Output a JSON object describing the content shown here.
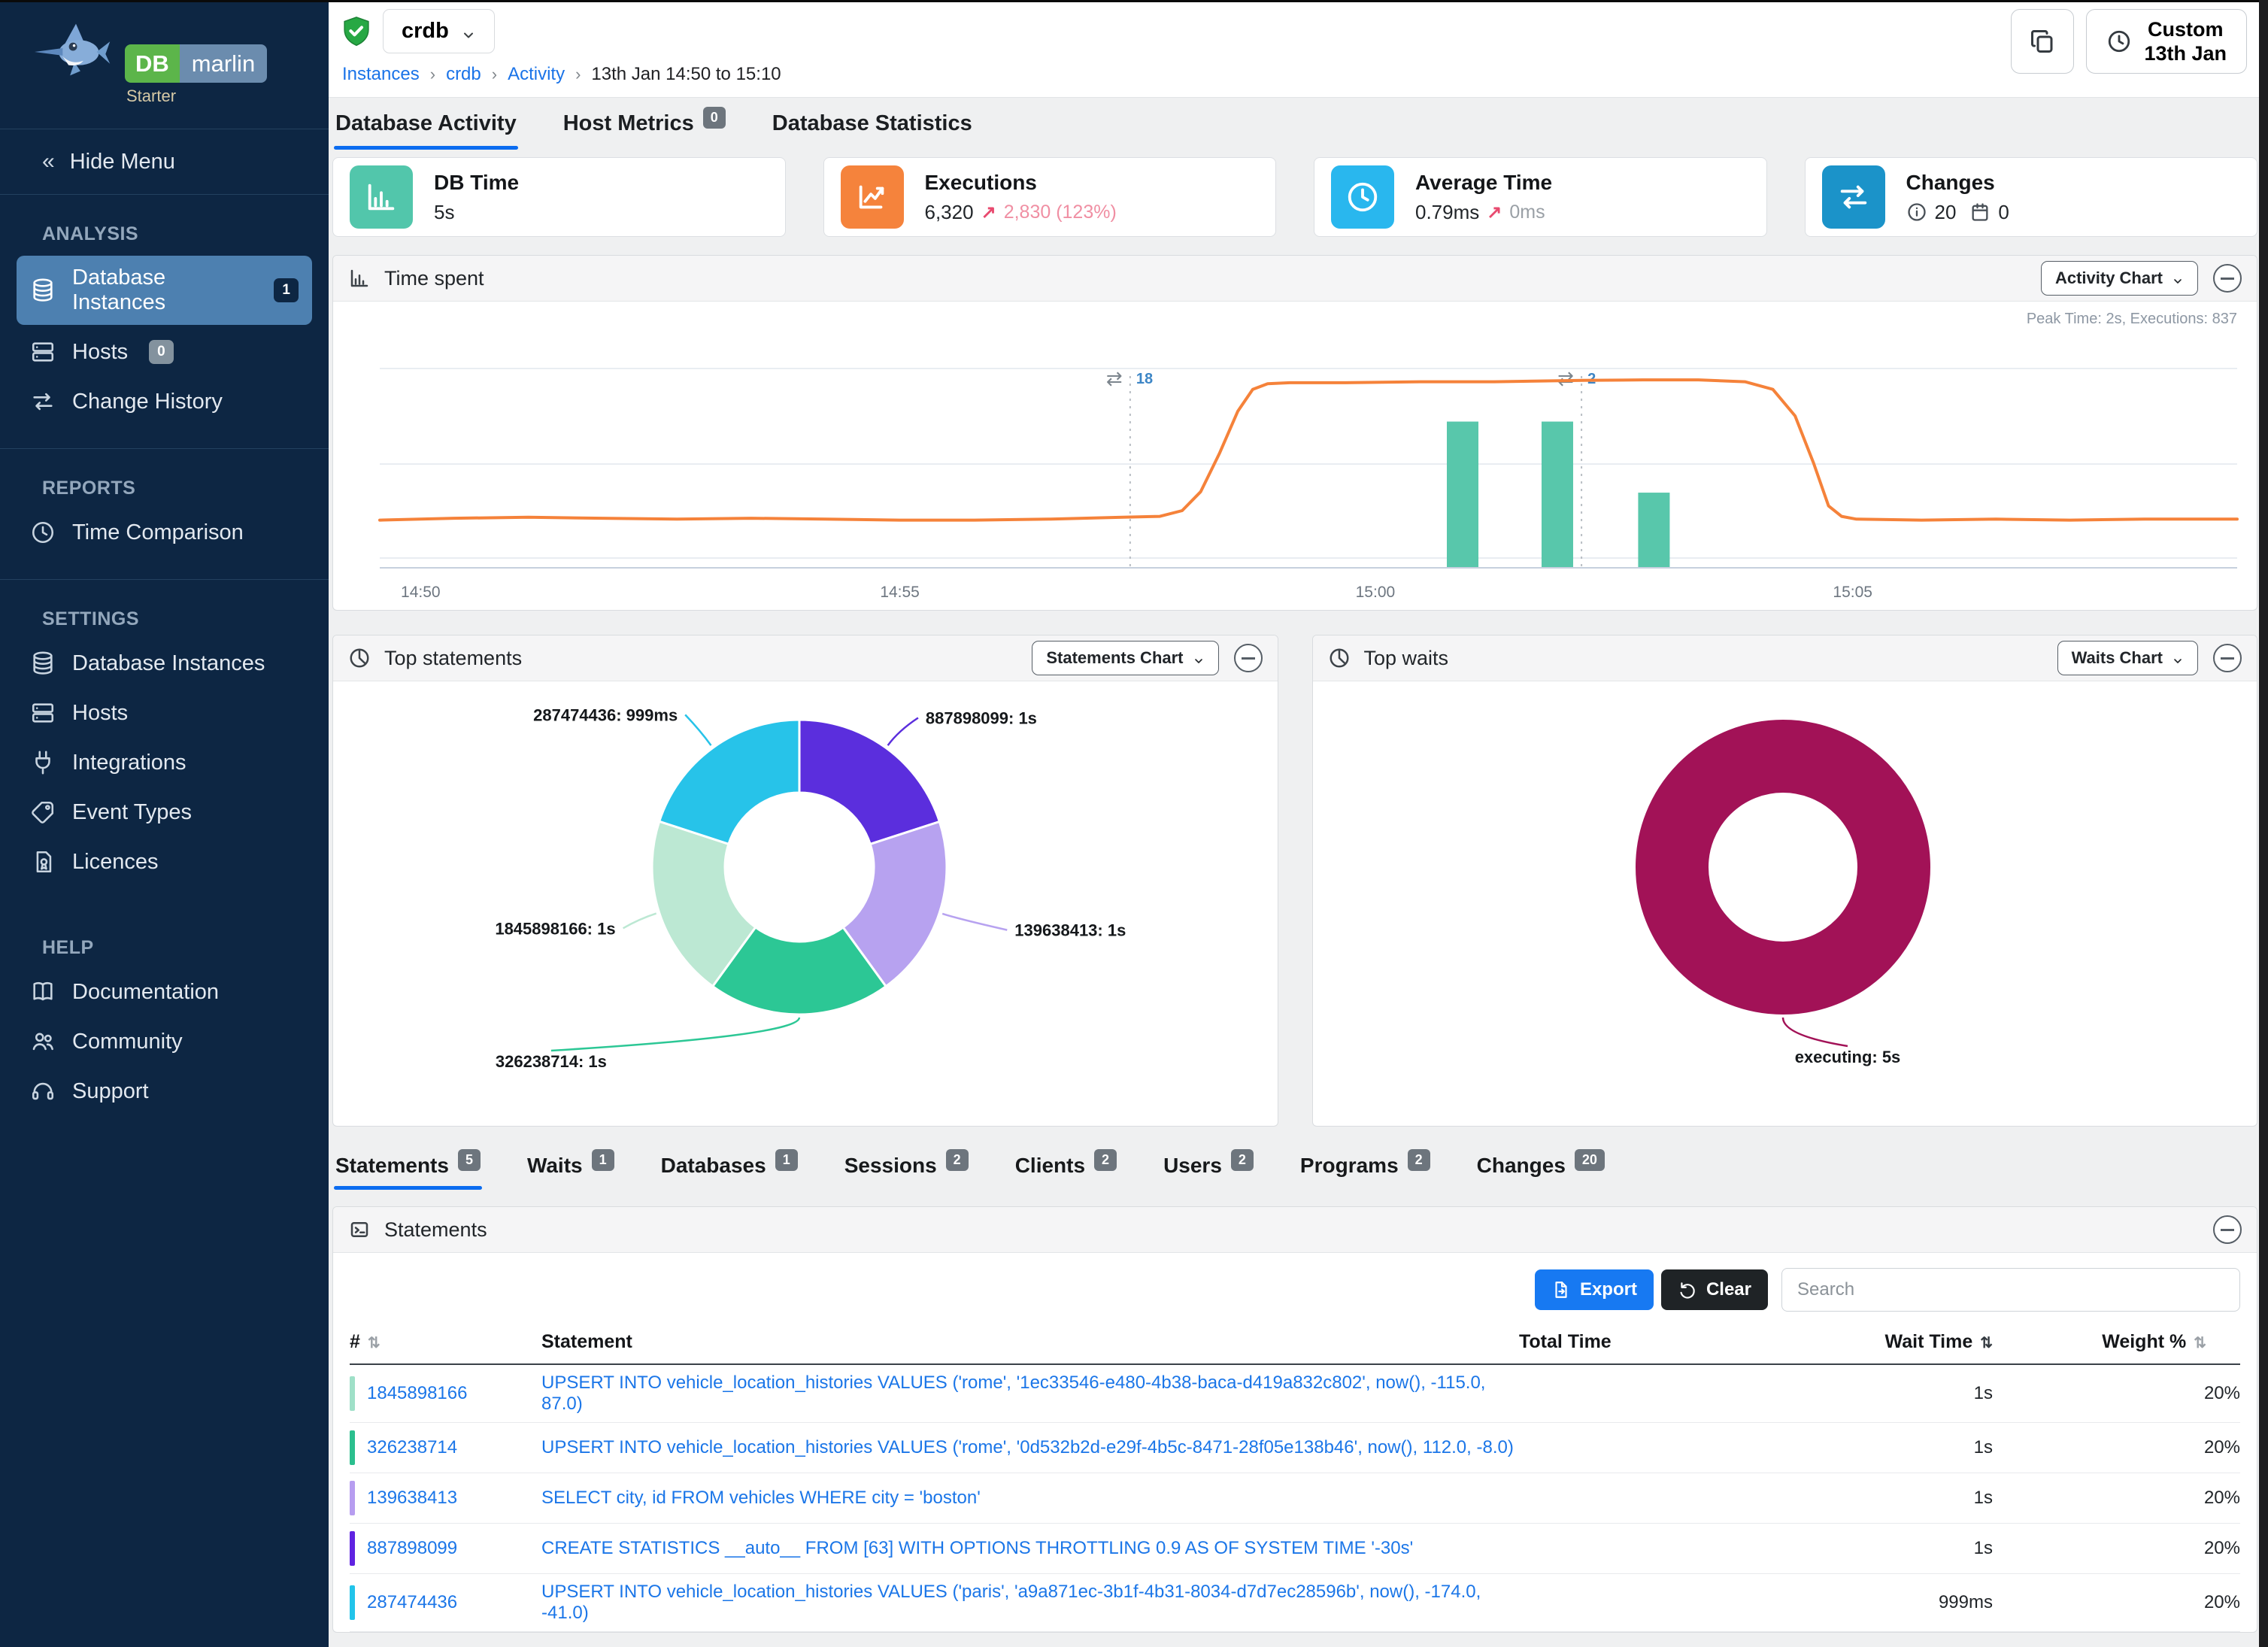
{
  "brand": {
    "db": "DB",
    "marlin": "marlin",
    "tier": "Starter"
  },
  "sidebar": {
    "hide_menu": "Hide Menu",
    "sections": [
      {
        "label": "ANALYSIS",
        "items": [
          {
            "label": "Database Instances",
            "icon": "database",
            "badge": "1",
            "badge_style": "navy",
            "active": true
          },
          {
            "label": "Hosts",
            "icon": "server",
            "badge": "0",
            "badge_style": "gray"
          },
          {
            "label": "Change History",
            "icon": "swap"
          }
        ]
      },
      {
        "label": "REPORTS",
        "items": [
          {
            "label": "Time Comparison",
            "icon": "clock"
          }
        ]
      },
      {
        "label": "SETTINGS",
        "items": [
          {
            "label": "Database Instances",
            "icon": "database"
          },
          {
            "label": "Hosts",
            "icon": "server"
          },
          {
            "label": "Integrations",
            "icon": "plug"
          },
          {
            "label": "Event Types",
            "icon": "tag"
          },
          {
            "label": "Licences",
            "icon": "licence"
          }
        ]
      },
      {
        "label": "HELP",
        "items": [
          {
            "label": "Documentation",
            "icon": "book"
          },
          {
            "label": "Community",
            "icon": "people"
          },
          {
            "label": "Support",
            "icon": "headset"
          }
        ]
      }
    ]
  },
  "header": {
    "instance": "crdb",
    "breadcrumb": [
      {
        "label": "Instances",
        "link": true
      },
      {
        "label": "crdb",
        "link": true
      },
      {
        "label": "Activity",
        "link": true
      },
      {
        "label": "13th Jan 14:50 to 15:10",
        "link": false
      }
    ],
    "time_button": {
      "line1": "Custom",
      "line2": "13th Jan"
    }
  },
  "tabs": [
    {
      "label": "Database Activity",
      "active": true
    },
    {
      "label": "Host Metrics",
      "badge": "0"
    },
    {
      "label": "Database Statistics"
    }
  ],
  "kpis": {
    "db_time": {
      "title": "DB Time",
      "value": "5s",
      "color": "#52c6ab"
    },
    "executions": {
      "title": "Executions",
      "value": "6,320",
      "delta": "2,830 (123%)",
      "color": "#f5833c"
    },
    "average_time": {
      "title": "Average Time",
      "value": "0.79ms",
      "delta": "0ms",
      "color": "#29b7ee"
    },
    "changes": {
      "title": "Changes",
      "info_count": "20",
      "event_count": "0",
      "color": "#1b93c9"
    }
  },
  "time_spent": {
    "title": "Time spent",
    "selector": "Activity Chart",
    "chart_data": {
      "type": "line+bar",
      "note": "Peak Time: 2s, Executions: 837",
      "x_range": [
        "14:50",
        "15:10"
      ],
      "y_max_seconds": 2,
      "x_ticks": [
        {
          "label": "14:50",
          "f": 0.022
        },
        {
          "label": "14:55",
          "f": 0.28
        },
        {
          "label": "15:00",
          "f": 0.536
        },
        {
          "label": "15:05",
          "f": 0.793
        }
      ],
      "line_series": {
        "name": "DB Time",
        "color": "#f5823a",
        "points": [
          [
            0,
            0.4
          ],
          [
            0.04,
            0.42
          ],
          [
            0.08,
            0.43
          ],
          [
            0.12,
            0.42
          ],
          [
            0.16,
            0.41
          ],
          [
            0.2,
            0.42
          ],
          [
            0.24,
            0.41
          ],
          [
            0.28,
            0.4
          ],
          [
            0.32,
            0.4
          ],
          [
            0.36,
            0.41
          ],
          [
            0.4,
            0.43
          ],
          [
            0.42,
            0.44
          ],
          [
            0.432,
            0.5
          ],
          [
            0.442,
            0.7
          ],
          [
            0.452,
            1.1
          ],
          [
            0.462,
            1.55
          ],
          [
            0.47,
            1.78
          ],
          [
            0.478,
            1.84
          ],
          [
            0.49,
            1.85
          ],
          [
            0.52,
            1.85
          ],
          [
            0.56,
            1.86
          ],
          [
            0.6,
            1.86
          ],
          [
            0.648,
            1.875
          ],
          [
            0.68,
            1.88
          ],
          [
            0.71,
            1.88
          ],
          [
            0.735,
            1.86
          ],
          [
            0.75,
            1.78
          ],
          [
            0.762,
            1.5
          ],
          [
            0.772,
            1.0
          ],
          [
            0.78,
            0.55
          ],
          [
            0.787,
            0.44
          ],
          [
            0.795,
            0.41
          ],
          [
            0.83,
            0.4
          ],
          [
            0.87,
            0.41
          ],
          [
            0.91,
            0.4
          ],
          [
            0.95,
            0.41
          ],
          [
            1.0,
            0.41
          ]
        ]
      },
      "bar_series": {
        "name": "Executions",
        "color": "#58c7ab",
        "bars": [
          {
            "x": 0.583,
            "v": 1.44
          },
          {
            "x": 0.634,
            "v": 1.44
          },
          {
            "x": 0.686,
            "v": 0.69
          }
        ]
      },
      "annotations": [
        {
          "x": 0.404,
          "count": "18"
        },
        {
          "x": 0.647,
          "count": "2"
        }
      ]
    }
  },
  "top_statements": {
    "title": "Top statements",
    "selector": "Statements Chart",
    "chart_data": {
      "type": "pie",
      "series": [
        {
          "name": "887898099",
          "value": 1,
          "value_label": "1s",
          "color": "#5b2edd",
          "label_offset": [
            28,
            2
          ]
        },
        {
          "name": "139638413",
          "value": 1,
          "value_label": "1s",
          "color": "#b7a2f0",
          "label_offset": [
            60,
            18
          ]
        },
        {
          "name": "326238714",
          "value": 1,
          "value_label": "1s",
          "color": "#2cc795",
          "label_offset": [
            -330,
            28
          ]
        },
        {
          "name": "1845898166",
          "value": 1,
          "value_label": "1s",
          "color": "#bce8d3",
          "label_offset": [
            -18,
            16
          ]
        },
        {
          "name": "287474436",
          "value": 0.999,
          "value_label": "999ms",
          "color": "#27c3e9",
          "label_offset": [
            -22,
            -2
          ]
        }
      ]
    }
  },
  "top_waits": {
    "title": "Top waits",
    "selector": "Waits Chart",
    "chart_data": {
      "type": "pie",
      "series": [
        {
          "name": "executing",
          "value": 5,
          "value_label": "5s",
          "color": "#a21257",
          "label_offset": [
            86,
            22
          ]
        }
      ]
    }
  },
  "detail_tabs": [
    {
      "label": "Statements",
      "badge": "5",
      "active": true
    },
    {
      "label": "Waits",
      "badge": "1"
    },
    {
      "label": "Databases",
      "badge": "1"
    },
    {
      "label": "Sessions",
      "badge": "2"
    },
    {
      "label": "Clients",
      "badge": "2"
    },
    {
      "label": "Users",
      "badge": "2"
    },
    {
      "label": "Programs",
      "badge": "2"
    },
    {
      "label": "Changes",
      "badge": "20"
    }
  ],
  "statements_table": {
    "title": "Statements",
    "export_label": "Export",
    "clear_label": "Clear",
    "search_placeholder": "Search",
    "columns": {
      "id": "#",
      "statement": "Statement",
      "total_time": "Total Time",
      "wait_time": "Wait Time",
      "weight": "Weight %"
    },
    "total_time_color": "#a21257",
    "rows": [
      {
        "id": "1845898166",
        "color": "#9fe0c8",
        "statement": "UPSERT INTO vehicle_location_histories VALUES ('rome', '1ec33546-e480-4b38-baca-d419a832c802', now(), -115.0, 87.0)",
        "wait_time": "1s",
        "weight": "20%"
      },
      {
        "id": "326238714",
        "color": "#2bbf8e",
        "statement": "UPSERT INTO vehicle_location_histories VALUES ('rome', '0d532b2d-e29f-4b5c-8471-28f05e138b46', now(), 112.0, -8.0)",
        "wait_time": "1s",
        "weight": "20%"
      },
      {
        "id": "139638413",
        "color": "#b79df0",
        "statement": "SELECT city, id FROM vehicles WHERE city = 'boston'",
        "wait_time": "1s",
        "weight": "20%"
      },
      {
        "id": "887898099",
        "color": "#6023e1",
        "statement": "CREATE STATISTICS __auto__ FROM [63] WITH OPTIONS THROTTLING 0.9 AS OF SYSTEM TIME '-30s'",
        "wait_time": "1s",
        "weight": "20%"
      },
      {
        "id": "287474436",
        "color": "#22c4ea",
        "statement": "UPSERT INTO vehicle_location_histories VALUES ('paris', 'a9a871ec-3b1f-4b31-8034-d7d7ec28596b', now(), -174.0, -41.0)",
        "wait_time": "999ms",
        "weight": "20%"
      }
    ]
  }
}
